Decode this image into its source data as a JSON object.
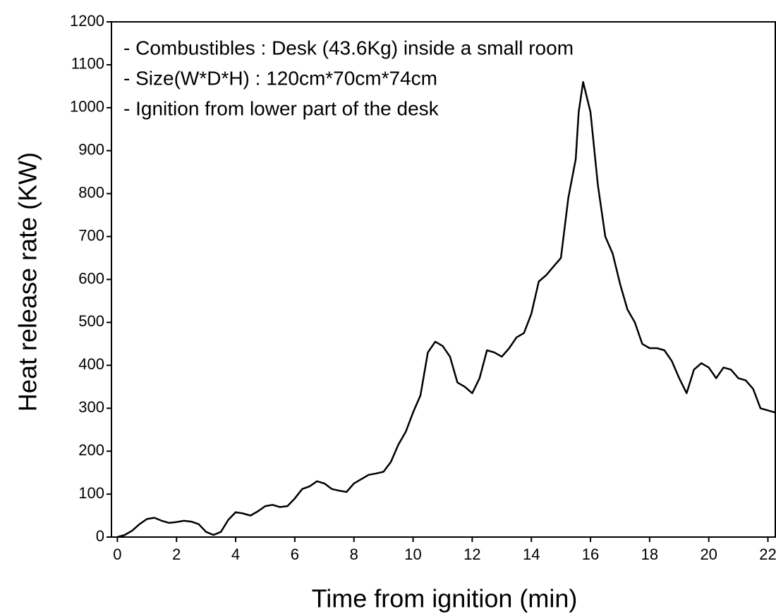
{
  "chart_data": {
    "type": "line",
    "x_label": "Time from ignition (min)",
    "y_label": "Heat release rate (KW)",
    "annotations": [
      "- Combustibles : Desk (43.6Kg) inside a small room",
      "- Size(W*D*H) : 120cm*70cm*74cm",
      "- Ignition from lower part of the desk"
    ],
    "color": "#000000",
    "x": [
      0,
      0.25,
      0.5,
      0.75,
      1,
      1.25,
      1.5,
      1.75,
      2,
      2.25,
      2.5,
      2.75,
      3,
      3.25,
      3.5,
      3.75,
      4,
      4.25,
      4.5,
      4.75,
      5,
      5.25,
      5.5,
      5.75,
      6,
      6.25,
      6.5,
      6.75,
      7,
      7.25,
      7.5,
      7.75,
      8,
      8.25,
      8.5,
      8.75,
      9,
      9.25,
      9.5,
      9.75,
      10,
      10.25,
      10.5,
      10.75,
      11,
      11.25,
      11.5,
      11.75,
      12,
      12.25,
      12.5,
      12.75,
      13,
      13.25,
      13.5,
      13.75,
      14,
      14.25,
      14.5,
      14.75,
      15,
      15.25,
      15.5,
      15.6,
      15.75,
      16,
      16.25,
      16.5,
      16.75,
      17,
      17.25,
      17.5,
      17.75,
      18,
      18.25,
      18.5,
      18.75,
      19,
      19.25,
      19.5,
      19.75,
      20,
      20.25,
      20.5,
      20.75,
      21,
      21.25,
      21.5,
      21.75,
      22,
      22.25
    ],
    "values": [
      0,
      5,
      15,
      30,
      42,
      45,
      38,
      33,
      35,
      38,
      36,
      30,
      12,
      5,
      12,
      40,
      58,
      55,
      50,
      60,
      72,
      75,
      70,
      72,
      90,
      112,
      118,
      130,
      125,
      112,
      108,
      105,
      125,
      135,
      145,
      148,
      152,
      175,
      215,
      245,
      290,
      330,
      430,
      455,
      445,
      420,
      360,
      350,
      335,
      370,
      435,
      430,
      420,
      440,
      465,
      475,
      520,
      595,
      610,
      630,
      650,
      790,
      880,
      990,
      1060,
      990,
      820,
      700,
      660,
      590,
      530,
      500,
      450,
      440,
      440,
      435,
      410,
      370,
      335,
      390,
      405,
      395,
      370,
      395,
      390,
      370,
      365,
      345,
      300,
      295,
      290
    ],
    "xlim": [
      -0.2,
      22.25
    ],
    "ylim": [
      0,
      1200
    ],
    "xticks": [
      0,
      2,
      4,
      6,
      8,
      10,
      12,
      14,
      16,
      18,
      20,
      22
    ],
    "yticks": [
      0,
      100,
      200,
      300,
      400,
      500,
      600,
      700,
      800,
      900,
      1000,
      1100,
      1200
    ]
  }
}
